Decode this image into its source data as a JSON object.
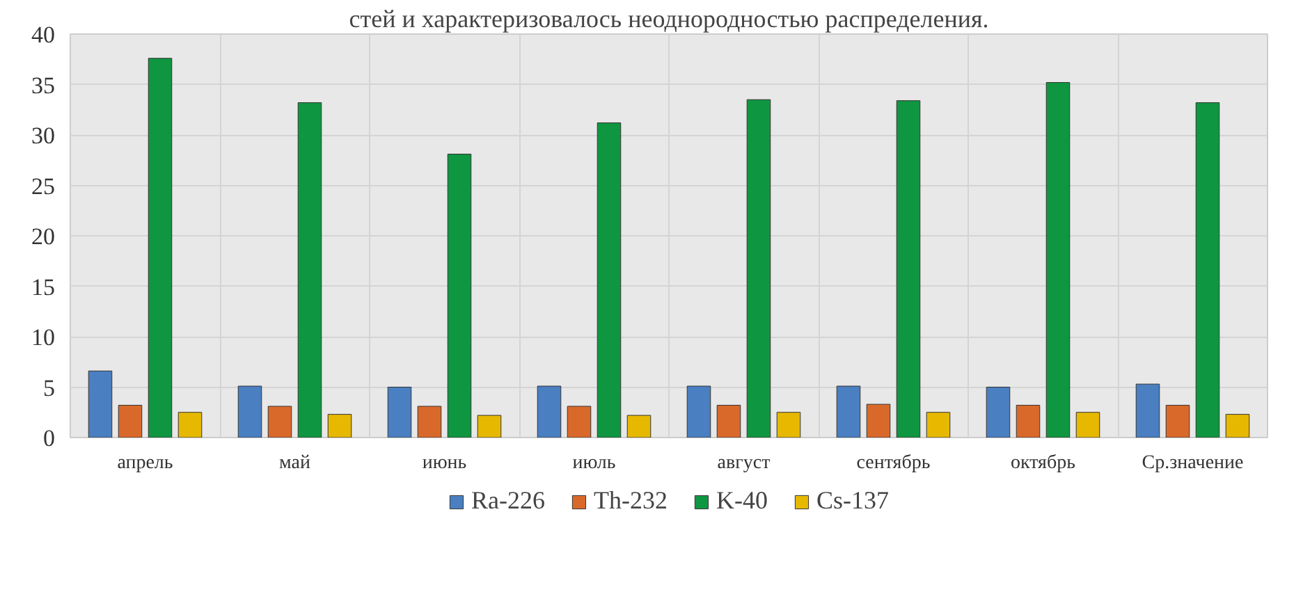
{
  "chart_data": {
    "type": "bar",
    "annotations": [
      "стей и характеризовалось неоднородностью распределения."
    ],
    "categories": [
      "апрель",
      "май",
      "июнь",
      "июль",
      "август",
      "сентябрь",
      "октябрь",
      "Ср.значение"
    ],
    "series": [
      {
        "name": "Ra-226",
        "color": "#4a7fc1",
        "values": [
          6.6,
          5.1,
          5.0,
          5.1,
          5.1,
          5.1,
          5.0,
          5.3
        ]
      },
      {
        "name": "Th-232",
        "color": "#d9692a",
        "values": [
          3.2,
          3.1,
          3.1,
          3.1,
          3.2,
          3.3,
          3.2,
          3.2
        ]
      },
      {
        "name": "K-40",
        "color": "#0f9640",
        "values": [
          37.6,
          33.2,
          28.1,
          31.2,
          33.5,
          33.4,
          35.2,
          33.2
        ]
      },
      {
        "name": "Cs-137",
        "color": "#e6b800",
        "values": [
          2.5,
          2.3,
          2.2,
          2.2,
          2.5,
          2.5,
          2.5,
          2.3
        ]
      }
    ],
    "ylim": [
      0,
      40
    ],
    "yticks": [
      0,
      5,
      10,
      15,
      20,
      25,
      30,
      35,
      40
    ],
    "grid": true,
    "legend": "bottom"
  }
}
